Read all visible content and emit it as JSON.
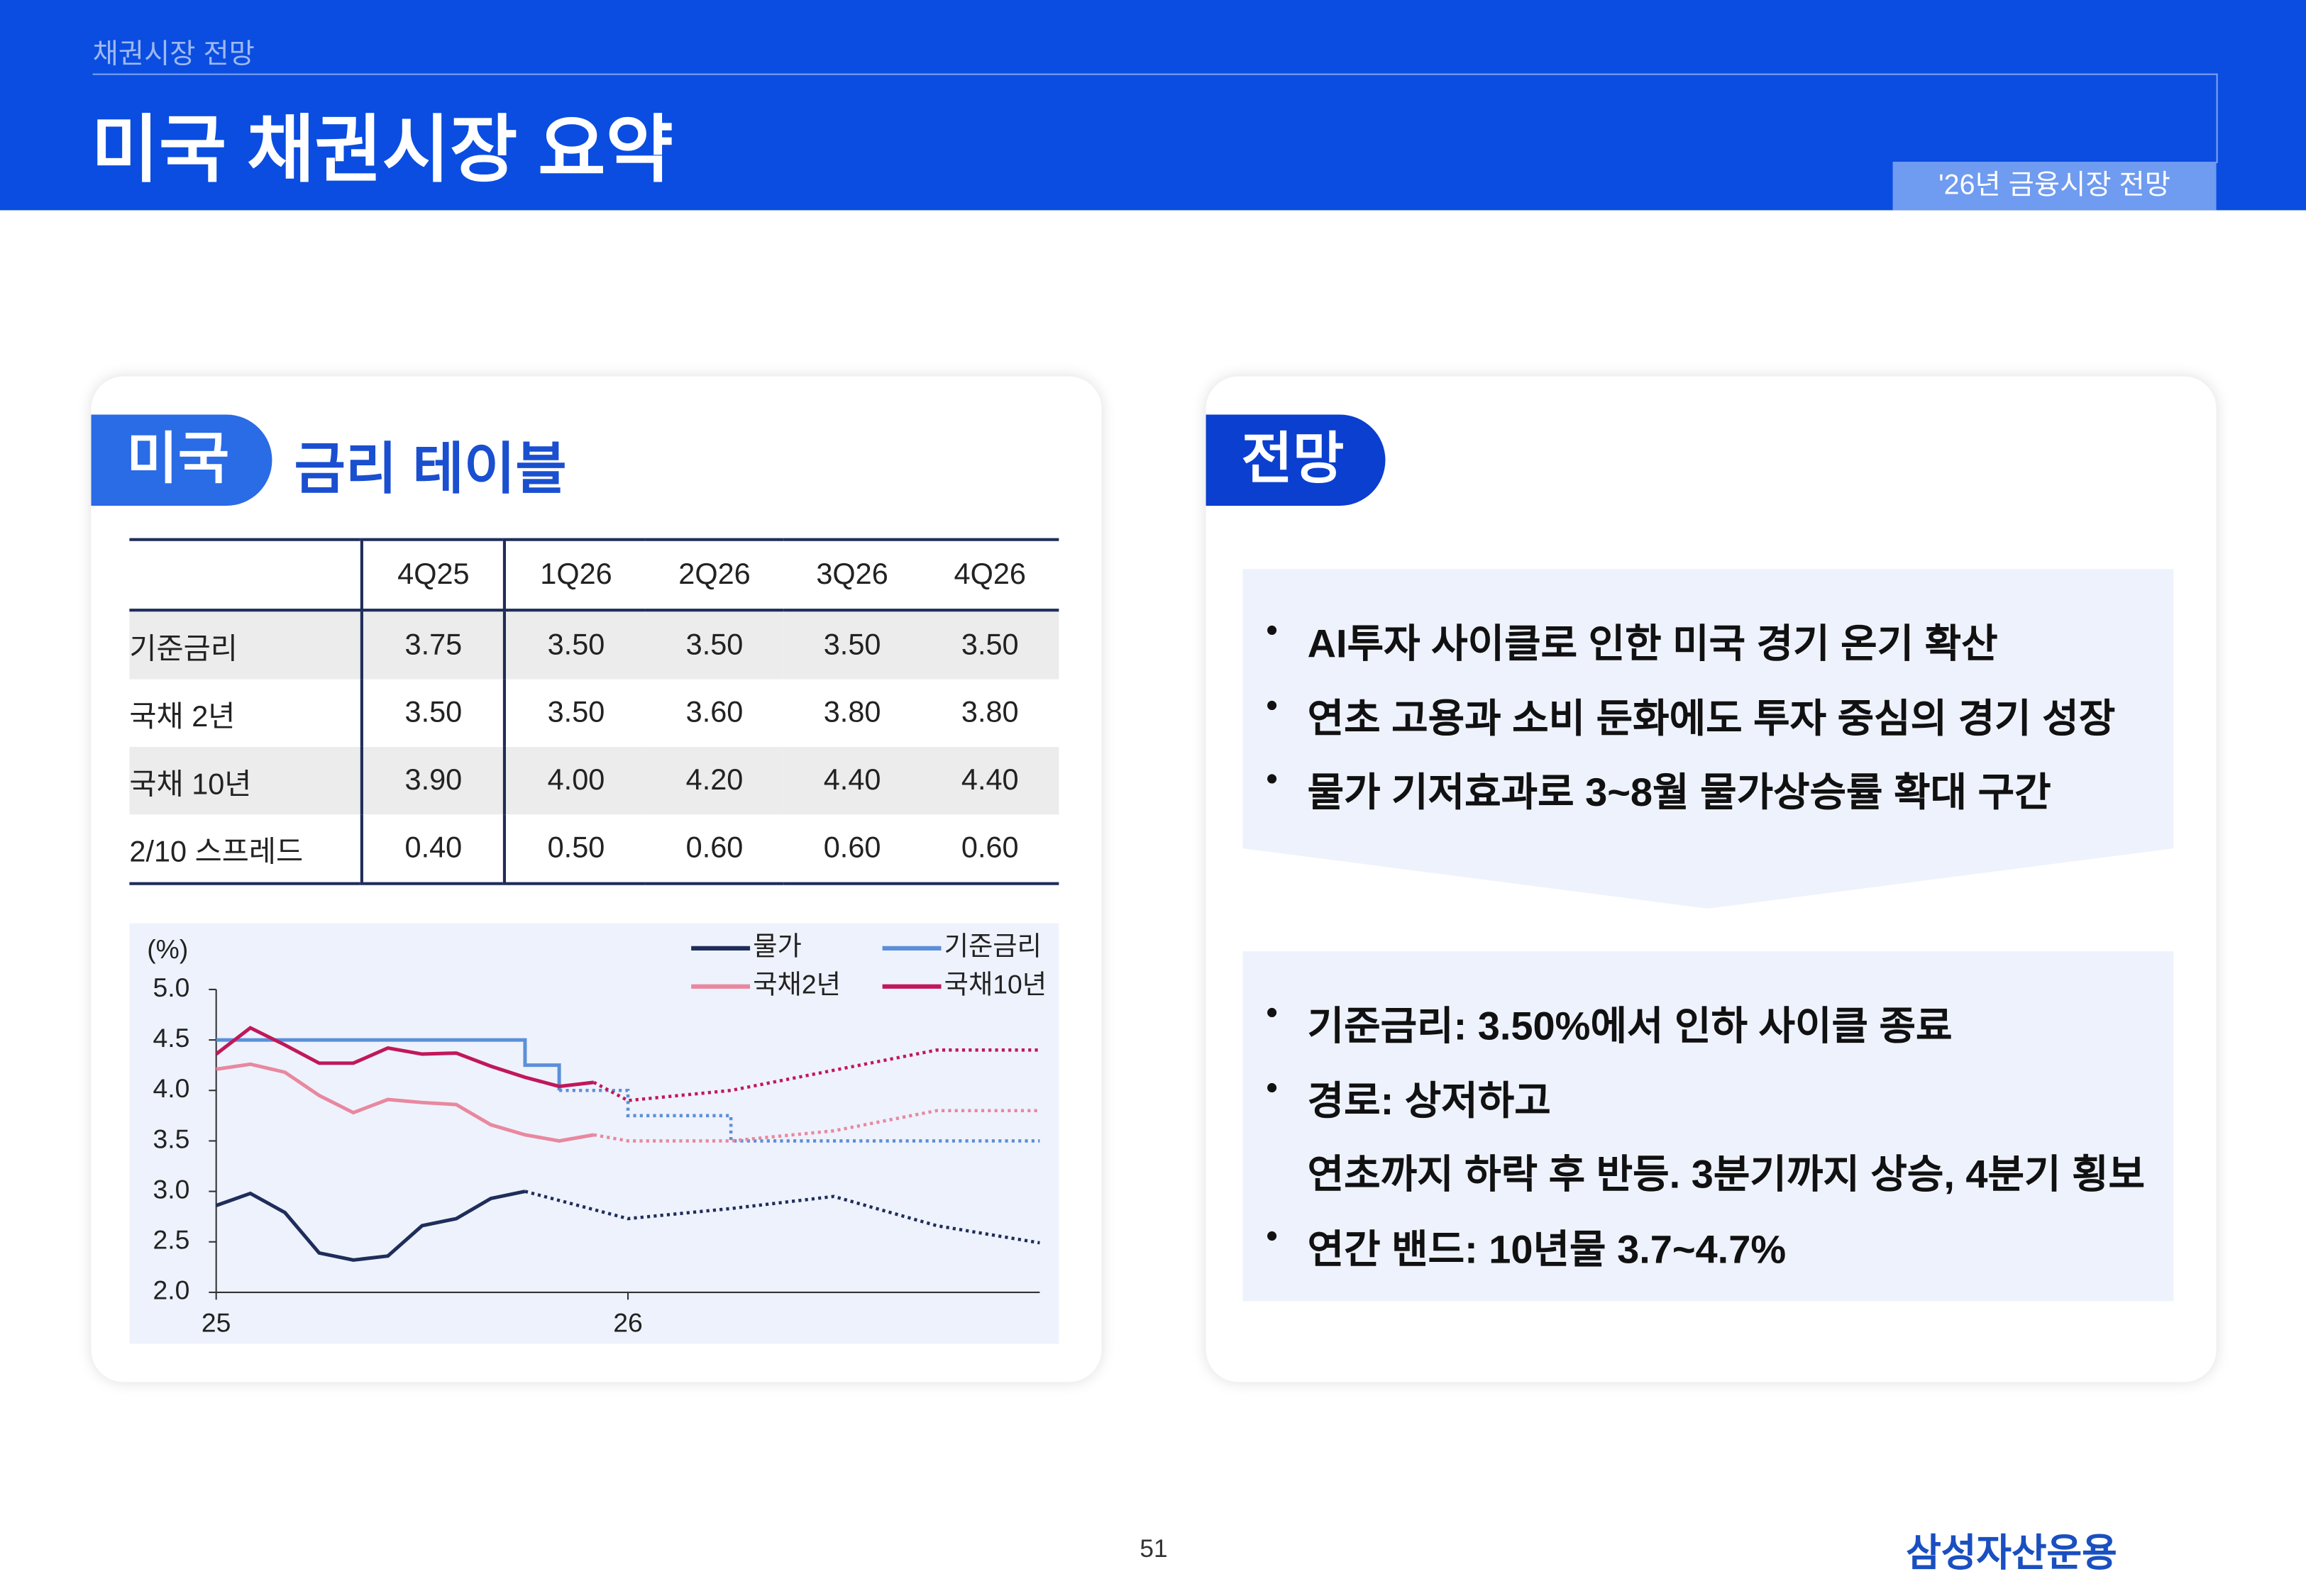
{
  "header": {
    "section": "채권시장 전망",
    "title": "미국 채권시장 요약",
    "tag": "'26년 금융시장 전망"
  },
  "left_card": {
    "badge": "미국",
    "title": "금리 테이블"
  },
  "table": {
    "columns": [
      "4Q25",
      "1Q26",
      "2Q26",
      "3Q26",
      "4Q26"
    ],
    "rows": [
      {
        "label": "기준금리",
        "cells": [
          "3.75",
          "3.50",
          "3.50",
          "3.50",
          "3.50"
        ]
      },
      {
        "label": "국채 2년",
        "cells": [
          "3.50",
          "3.50",
          "3.60",
          "3.80",
          "3.80"
        ]
      },
      {
        "label": "국채 10년",
        "cells": [
          "3.90",
          "4.00",
          "4.20",
          "4.40",
          "4.40"
        ]
      },
      {
        "label": "2/10 스프레드",
        "cells": [
          "0.40",
          "0.50",
          "0.60",
          "0.60",
          "0.60"
        ]
      }
    ]
  },
  "chart_data": {
    "type": "line",
    "y_label": "(%)",
    "xlim": [
      25,
      27
    ],
    "ylim": [
      2,
      5
    ],
    "xticks": [
      25,
      26
    ],
    "yticks": [
      {
        "value": 2,
        "label": "2.0"
      },
      {
        "value": 2.5,
        "label": "2.5"
      },
      {
        "value": 3,
        "label": "3.0"
      },
      {
        "value": 3.5,
        "label": "3.5"
      },
      {
        "value": 4,
        "label": "4.0"
      },
      {
        "value": 4.5,
        "label": "4.5"
      },
      {
        "value": 5,
        "label": "5.0"
      }
    ],
    "legend": "upper right",
    "series": [
      {
        "name": "물가",
        "color": "#1f2d5a",
        "x": [
          25,
          25.083,
          25.167,
          25.25,
          25.333,
          25.417,
          25.5,
          25.583,
          25.667,
          25.75
        ],
        "values": [
          2.86,
          2.98,
          2.79,
          2.39,
          2.32,
          2.36,
          2.66,
          2.73,
          2.93,
          3.0
        ],
        "forecast_x": [
          25.75,
          26,
          26.25,
          26.5,
          26.75,
          27
        ],
        "forecast_values": [
          3.0,
          2.73,
          2.83,
          2.95,
          2.66,
          2.49
        ]
      },
      {
        "name": "기준금리",
        "color": "#5b8fd9",
        "step": true,
        "x": [
          25,
          25.75,
          25.833
        ],
        "values": [
          4.5,
          4.25,
          4.0
        ],
        "forecast_x": [
          25.833,
          26,
          26.25,
          27
        ],
        "forecast_values": [
          4.0,
          3.75,
          3.5,
          3.5
        ]
      },
      {
        "name": "국채2년",
        "color": "#e8889f",
        "x": [
          25,
          25.083,
          25.167,
          25.25,
          25.333,
          25.417,
          25.5,
          25.583,
          25.667,
          25.75,
          25.833,
          25.917
        ],
        "values": [
          4.21,
          4.26,
          4.18,
          3.95,
          3.78,
          3.91,
          3.88,
          3.86,
          3.66,
          3.56,
          3.5,
          3.56
        ],
        "forecast_x": [
          25.917,
          26,
          26.25,
          26.5,
          26.75,
          27
        ],
        "forecast_values": [
          3.56,
          3.5,
          3.5,
          3.6,
          3.8,
          3.8
        ]
      },
      {
        "name": "국채10년",
        "color": "#c0185a",
        "x": [
          25,
          25.083,
          25.167,
          25.25,
          25.333,
          25.417,
          25.5,
          25.583,
          25.667,
          25.75,
          25.833,
          25.917
        ],
        "values": [
          4.36,
          4.62,
          4.45,
          4.27,
          4.27,
          4.42,
          4.36,
          4.37,
          4.24,
          4.13,
          4.04,
          4.08
        ],
        "forecast_x": [
          25.917,
          26,
          26.25,
          26.5,
          26.75,
          27
        ],
        "forecast_values": [
          4.08,
          3.9,
          4.0,
          4.2,
          4.4,
          4.4
        ]
      }
    ]
  },
  "right_card": {
    "badge": "전망",
    "summary": [
      "AI투자 사이클로 인한 미국 경기 온기 확산",
      "연초 고용과 소비 둔화에도 투자 중심의 경기 성장",
      "물가 기저효과로 3~8월 물가상승률 확대 구간"
    ],
    "details": [
      {
        "text": "기준금리: 3.50%에서 인하 사이클 종료"
      },
      {
        "text": "경로: 상저하고",
        "sub": "연초까지 하락 후 반등. 3분기까지 상승, 4분기 횡보"
      },
      {
        "text": "연간 밴드: 10년물 3.7~4.7%"
      }
    ]
  },
  "footer": {
    "page": "51",
    "brand": "삼성자산운용"
  }
}
